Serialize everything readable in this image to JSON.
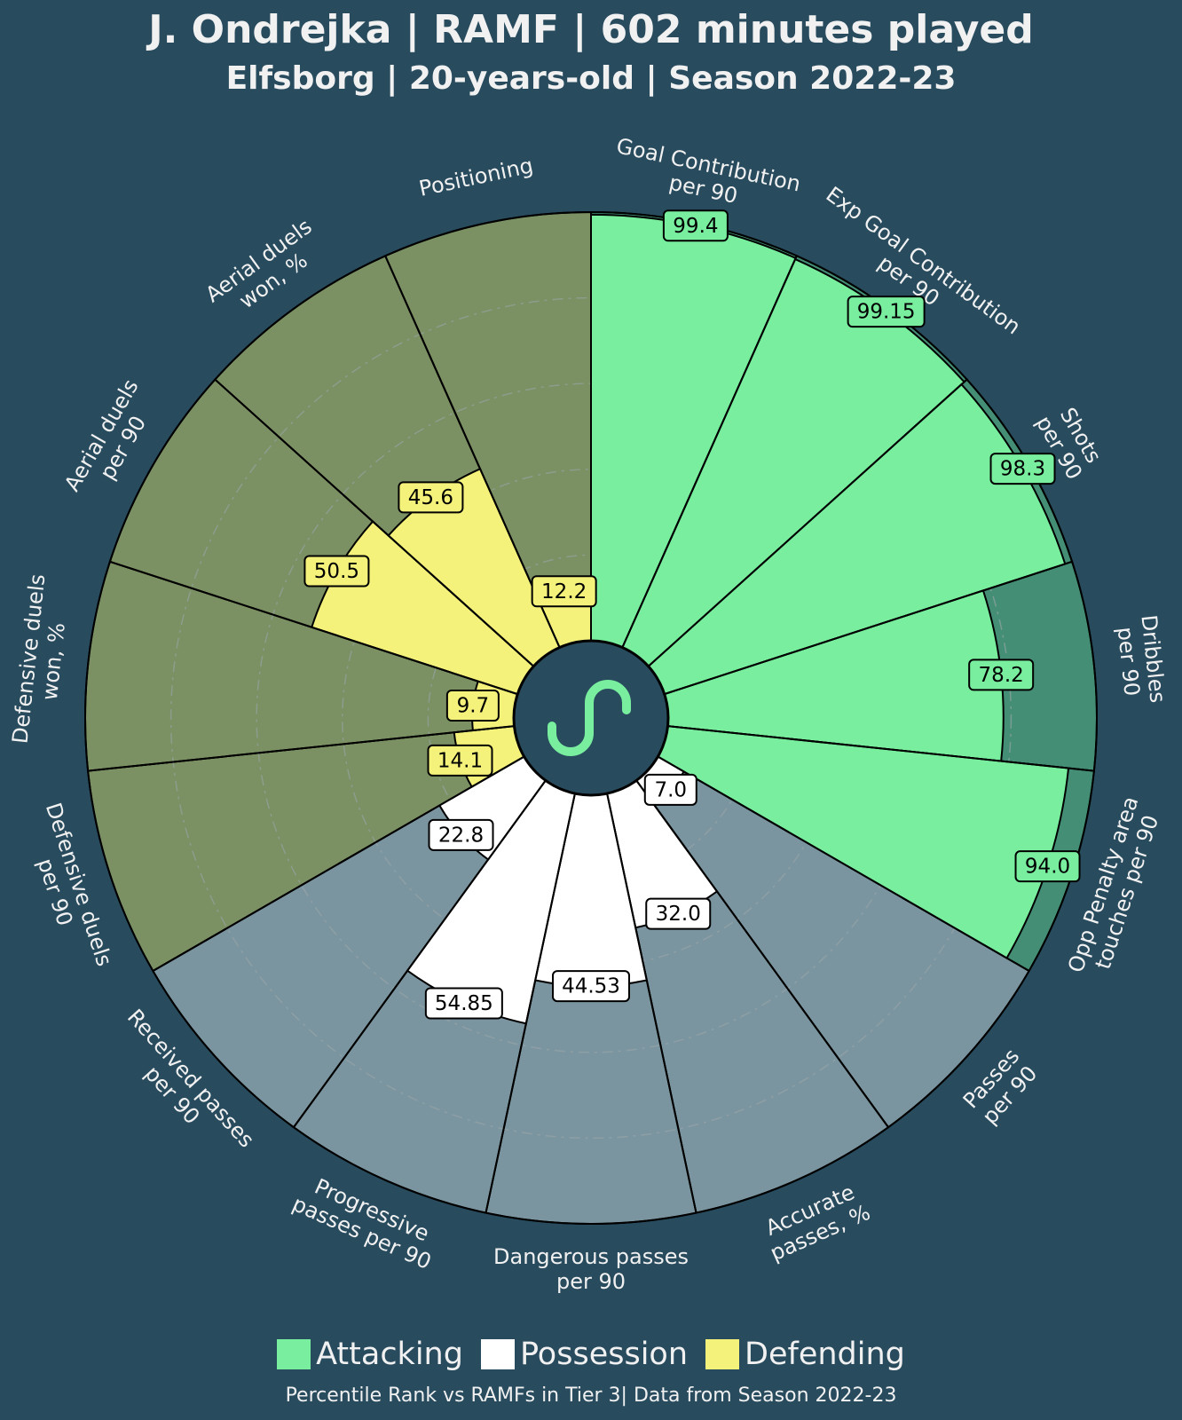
{
  "header": {
    "title": "J. Ondrejka | RAMF | 602 minutes played",
    "subtitle": "Elfsborg | 20-years-old | Season 2022-23"
  },
  "footer": {
    "note": "Percentile Rank vs RAMFs in Tier 3| Data from Season 2022-23"
  },
  "legend": [
    {
      "label": "Attacking",
      "color": "#78ee9e"
    },
    {
      "label": "Possession",
      "color": "#ffffff"
    },
    {
      "label": "Defending",
      "color": "#f4f27a"
    }
  ],
  "logo": {
    "icon": "s-wave-logo-icon",
    "color": "#78ee9e"
  },
  "colors": {
    "background": "#284b5e",
    "attacking_bg": "#458e76",
    "possession_bg": "#7b95a0",
    "defending_bg": "#7b9063"
  },
  "chart_data": {
    "type": "radar-bar",
    "scale": [
      0,
      100
    ],
    "categories": [
      {
        "name": "Goal Contribution per 90",
        "label": "Goal Contribution\nper 90",
        "value": 99.4,
        "value_label": "99.4",
        "group": "Attacking"
      },
      {
        "name": "Exp Goal Contribution per 90",
        "label": "Exp Goal Contribution\nper 90",
        "value": 99.15,
        "value_label": "99.15",
        "group": "Attacking"
      },
      {
        "name": "Shots per 90",
        "label": "Shots\nper 90",
        "value": 98.3,
        "value_label": "98.3",
        "group": "Attacking"
      },
      {
        "name": "Dribbles per 90",
        "label": "Dribbles\nper 90",
        "value": 78.2,
        "value_label": "78.2",
        "group": "Attacking"
      },
      {
        "name": "Opp Penalty area touches per 90",
        "label": "Opp Penalty area\ntouches per 90",
        "value": 94.0,
        "value_label": "94.0",
        "group": "Attacking"
      },
      {
        "name": "Passes per 90",
        "label": "Passes\nper 90",
        "value": 7.0,
        "value_label": "7.0",
        "group": "Possession"
      },
      {
        "name": "Accurate passes, %",
        "label": "Accurate\npasses, %",
        "value": 32.0,
        "value_label": "32.0",
        "group": "Possession"
      },
      {
        "name": "Dangerous passes per 90",
        "label": "Dangerous passes\nper 90",
        "value": 44.53,
        "value_label": "44.53",
        "group": "Possession"
      },
      {
        "name": "Progressive passes per 90",
        "label": "Progressive\npasses per 90",
        "value": 54.85,
        "value_label": "54.85",
        "group": "Possession"
      },
      {
        "name": "Received passes per 90",
        "label": "Received passes\nper 90",
        "value": 22.8,
        "value_label": "22.8",
        "group": "Possession"
      },
      {
        "name": "Defensive duels per 90",
        "label": "Defensive duels\nper 90",
        "value": 14.1,
        "value_label": "14.1",
        "group": "Defending"
      },
      {
        "name": "Defensive duels won, %",
        "label": "Defensive duels\nwon, %",
        "value": 9.7,
        "value_label": "9.7",
        "group": "Defending"
      },
      {
        "name": "Aerial duels per 90",
        "label": "Aerial duels\nper 90",
        "value": 50.5,
        "value_label": "50.5",
        "group": "Defending"
      },
      {
        "name": "Aerial duels won, %",
        "label": "Aerial duels\nwon, %",
        "value": 45.6,
        "value_label": "45.6",
        "group": "Defending"
      },
      {
        "name": "Positioning",
        "label": "Positioning",
        "value": 12.2,
        "value_label": "12.2",
        "group": "Defending"
      }
    ]
  }
}
